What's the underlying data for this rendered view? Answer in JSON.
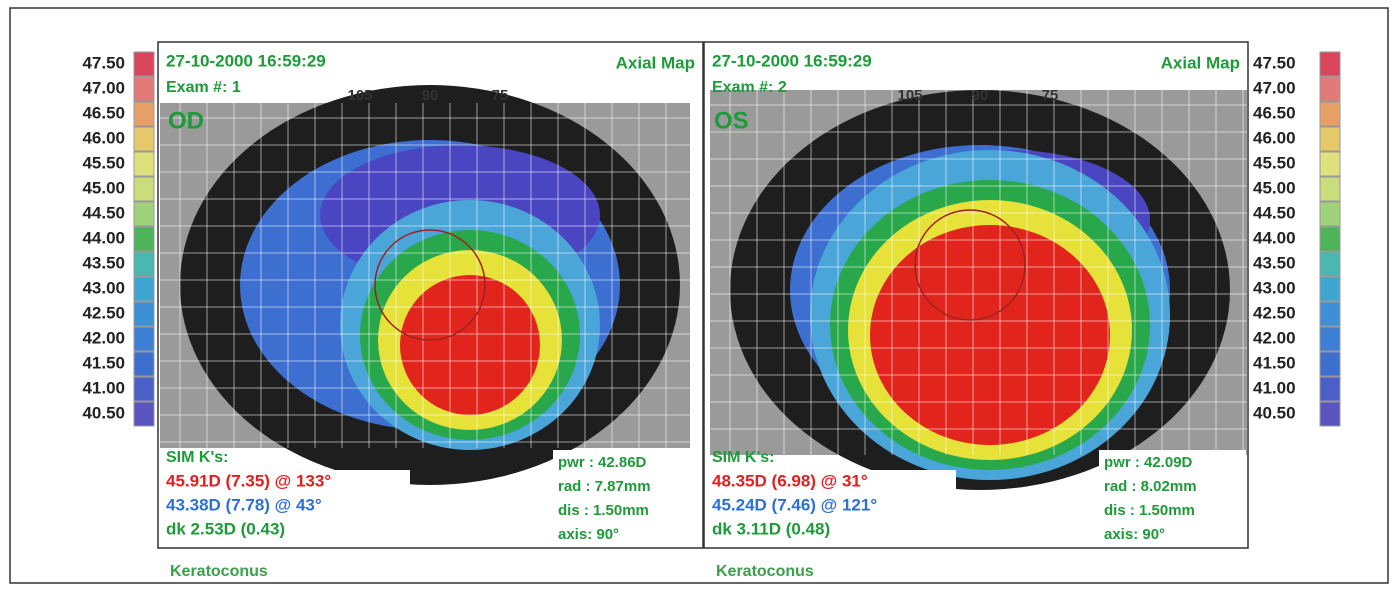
{
  "scale": {
    "labels": [
      "47.50",
      "47.00",
      "46.50",
      "46.00",
      "45.50",
      "45.00",
      "44.50",
      "44.00",
      "43.50",
      "43.00",
      "42.50",
      "42.00",
      "41.50",
      "41.00",
      "40.50"
    ],
    "colors": [
      "#d9455a",
      "#e27a78",
      "#e6a066",
      "#e6c96a",
      "#dfe27c",
      "#c9dd7a",
      "#9fd27a",
      "#4fb35a",
      "#4ab8b0",
      "#3fa6d2",
      "#3d8fd6",
      "#3c7fd4",
      "#3d6fcf",
      "#4a5fc8",
      "#5a55be"
    ]
  },
  "panels": [
    {
      "date": "27-10-2000 16:59:29",
      "map": "Axial Map",
      "exam": "Exam #: 1",
      "eye": "OD",
      "sim": "SIM K's:",
      "k1": "45.91D (7.35) @ 133°",
      "k2": "43.38D (7.78) @ 43°",
      "dk": "dk  2.53D (0.43)",
      "pwr": "pwr : 42.86D",
      "rad": "rad : 7.87mm",
      "dis": "dis : 1.50mm",
      "axis": "axis: 90°",
      "caption": "Keratoconus",
      "angles": [
        "105",
        "90",
        "75"
      ]
    },
    {
      "date": "27-10-2000 16:59:29",
      "map": "Axial Map",
      "exam": "Exam #: 2",
      "eye": "OS",
      "sim": "SIM K's:",
      "k1": "48.35D (6.98) @ 31°",
      "k2": "45.24D (7.46) @ 121°",
      "dk": "dk  3.11D (0.48)",
      "pwr": "pwr : 42.09D",
      "rad": "rad : 8.02mm",
      "dis": "dis : 1.50mm",
      "axis": "axis: 90°",
      "caption": "Keratoconus",
      "angles": [
        "105",
        "90",
        "75"
      ]
    }
  ]
}
